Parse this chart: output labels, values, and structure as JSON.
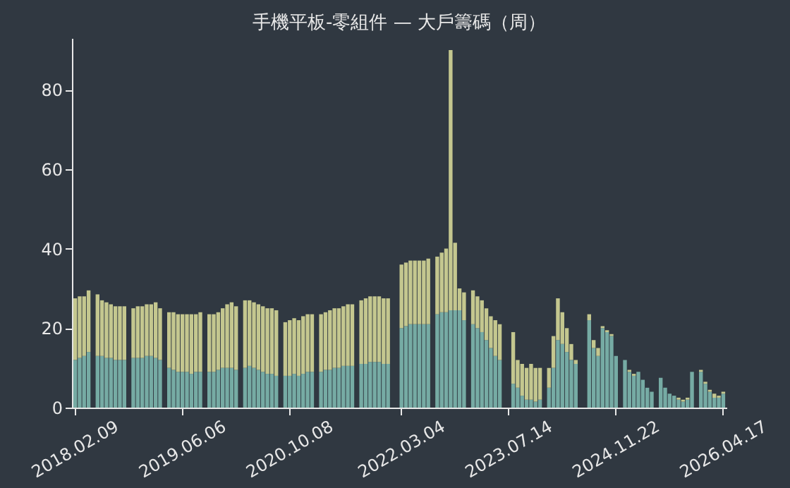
{
  "chart_data": {
    "type": "bar",
    "title": "手機平板-零組件 — 大戶籌碼（周）",
    "stacked": true,
    "categories": [
      "2018.02.09",
      null,
      null,
      null,
      null,
      null,
      null,
      null,
      null,
      null,
      null,
      null,
      null,
      null,
      null,
      null,
      null,
      null,
      null,
      null,
      null,
      null,
      null,
      null,
      "2019.06.06",
      null,
      null,
      null,
      null,
      null,
      null,
      null,
      null,
      null,
      null,
      null,
      null,
      null,
      null,
      null,
      null,
      null,
      null,
      null,
      null,
      null,
      null,
      null,
      "2020.10.08",
      null,
      null,
      null,
      null,
      null,
      null,
      null,
      null,
      null,
      null,
      null,
      null,
      null,
      null,
      null,
      null,
      null,
      null,
      null,
      null,
      null,
      null,
      null,
      null,
      "2022.03.04",
      null,
      null,
      null,
      null,
      null,
      null,
      null,
      null,
      null,
      null,
      null,
      null,
      null,
      null,
      null,
      null,
      null,
      null,
      null,
      null,
      null,
      null,
      null,
      "2023.07.14",
      null,
      null,
      null,
      null,
      null,
      null,
      null,
      null,
      null,
      null,
      null,
      null,
      null,
      null,
      null,
      null,
      null,
      null,
      null,
      null,
      null,
      null,
      null,
      "2024.11.22",
      null,
      null,
      null,
      null,
      null,
      null,
      null,
      null,
      null,
      null,
      null,
      null,
      null,
      null,
      null,
      null,
      null,
      null,
      null,
      null,
      null,
      null,
      null,
      "2026.04.17"
    ],
    "series": [
      {
        "color": "#76aba4",
        "values": [
          12,
          12.5,
          13,
          14,
          null,
          13,
          13,
          12.5,
          12.5,
          12,
          12,
          12,
          null,
          12.5,
          12.5,
          12.5,
          13,
          13,
          12.5,
          12,
          null,
          10,
          9.5,
          9,
          9,
          9,
          8.5,
          9,
          9,
          null,
          9,
          9,
          9.5,
          10,
          10,
          10,
          9.5,
          null,
          10,
          10.5,
          10,
          9.5,
          9,
          8.5,
          8.5,
          8,
          null,
          8,
          8,
          8.5,
          8,
          8.5,
          9,
          9,
          null,
          9,
          9.5,
          9.5,
          10,
          10,
          10.5,
          10.5,
          10.5,
          null,
          11,
          11,
          11.5,
          11.5,
          11.5,
          11,
          11,
          null,
          null,
          20,
          20.5,
          21,
          21,
          21,
          21,
          21,
          null,
          23.5,
          24,
          24,
          24.5,
          24.5,
          24.5,
          22,
          null,
          21,
          20,
          19,
          17,
          15,
          13,
          12,
          null,
          null,
          6,
          5,
          3,
          2,
          2,
          1.5,
          2,
          null,
          5,
          10,
          17,
          16,
          14,
          12,
          11,
          null,
          null,
          22,
          15,
          13,
          20,
          19,
          18,
          13,
          null,
          12,
          9,
          8,
          9,
          7,
          5,
          4,
          null,
          7.5,
          5,
          3.5,
          3,
          2,
          1.5,
          2,
          9,
          null,
          9,
          6,
          4,
          2.5,
          2.5,
          3.5
        ]
      },
      {
        "color": "#c4c78f",
        "values": [
          15.5,
          15.5,
          15,
          15.5,
          null,
          15.5,
          14,
          14,
          13.5,
          13.5,
          13.5,
          13.5,
          null,
          12.5,
          13,
          13,
          13,
          13,
          14,
          13,
          null,
          14,
          14.5,
          14.5,
          14.5,
          14.5,
          15,
          14.5,
          15,
          null,
          14.5,
          14.5,
          14.5,
          15,
          16,
          16.5,
          16,
          null,
          17,
          16.5,
          16.5,
          16.5,
          16.5,
          16.5,
          16.5,
          16.5,
          null,
          13.5,
          14,
          14,
          14,
          14.5,
          14.5,
          14.5,
          null,
          14.5,
          14.5,
          15,
          15,
          15,
          15,
          15.5,
          15.5,
          null,
          16,
          16.5,
          16.5,
          16.5,
          16.5,
          16.5,
          16.5,
          null,
          null,
          16,
          16,
          16,
          16,
          16,
          16,
          16.5,
          null,
          14.5,
          15,
          16,
          65.5,
          17,
          5.5,
          7,
          null,
          8.5,
          8,
          8,
          8,
          8,
          9,
          9,
          null,
          null,
          13,
          7,
          8,
          8,
          9,
          8.5,
          8,
          null,
          5,
          8,
          10.5,
          8,
          6,
          4,
          1,
          null,
          null,
          1.5,
          2,
          2,
          0.5,
          0.5,
          0.5,
          0,
          null,
          0,
          0.5,
          0.5,
          0,
          0,
          0,
          0,
          null,
          0,
          0,
          0,
          0,
          0.5,
          0.5,
          0.5,
          0,
          null,
          0.5,
          0.5,
          0.5,
          1,
          0.5,
          0.5
        ]
      }
    ],
    "ylim": [
      0,
      93
    ],
    "yticks": [
      0,
      20,
      40,
      60,
      80
    ],
    "grid": false,
    "legend": false
  }
}
